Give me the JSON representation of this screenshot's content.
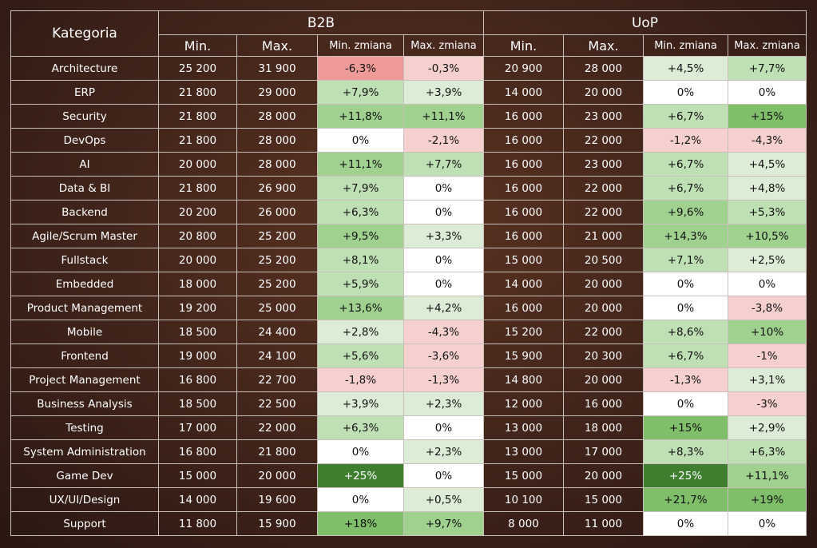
{
  "colors": {
    "neg_strong": "#ee9a98",
    "neg_light": "#f6cfcf",
    "neutral": "#ffffff",
    "pos_xlight": "#dcecd6",
    "pos_light": "#bfe0b4",
    "pos_mid": "#a0d18f",
    "pos_strong": "#7fbf6a",
    "pos_xstrong": "#3f7e2f"
  },
  "chart_data": {
    "type": "table",
    "title": "",
    "header": {
      "kategoria": "Kategoria",
      "groups": [
        "B2B",
        "UoP"
      ],
      "subcols": [
        "Min.",
        "Max.",
        "Min. zmiana",
        "Max. zmiana",
        "Min.",
        "Max.",
        "Min. zmiana",
        "Max. zmiana"
      ]
    },
    "rows": [
      {
        "kategoria": "Architecture",
        "b2b": [
          "25 200",
          "31 900",
          "-6,3%",
          "-0,3%"
        ],
        "uop": [
          "20 900",
          "28 000",
          "+4,5%",
          "+7,7%"
        ]
      },
      {
        "kategoria": "ERP",
        "b2b": [
          "21 800",
          "29 000",
          "+7,9%",
          "+3,9%"
        ],
        "uop": [
          "14 000",
          "20 000",
          "0%",
          "0%"
        ]
      },
      {
        "kategoria": "Security",
        "b2b": [
          "21 800",
          "28 000",
          "+11,8%",
          "+11,1%"
        ],
        "uop": [
          "16 000",
          "23 000",
          "+6,7%",
          "+15%"
        ]
      },
      {
        "kategoria": "DevOps",
        "b2b": [
          "21 800",
          "28 000",
          "0%",
          "-2,1%"
        ],
        "uop": [
          "16 000",
          "22 000",
          "-1,2%",
          "-4,3%"
        ]
      },
      {
        "kategoria": "AI",
        "b2b": [
          "20 000",
          "28 000",
          "+11,1%",
          "+7,7%"
        ],
        "uop": [
          "16 000",
          "23 000",
          "+6,7%",
          "+4,5%"
        ]
      },
      {
        "kategoria": "Data & BI",
        "b2b": [
          "21 800",
          "26 900",
          "+7,9%",
          "0%"
        ],
        "uop": [
          "16 000",
          "22 000",
          "+6,7%",
          "+4,8%"
        ]
      },
      {
        "kategoria": "Backend",
        "b2b": [
          "20 200",
          "26 000",
          "+6,3%",
          "0%"
        ],
        "uop": [
          "16 000",
          "22 000",
          "+9,6%",
          "+5,3%"
        ]
      },
      {
        "kategoria": "Agile/Scrum Master",
        "b2b": [
          "20 800",
          "25 200",
          "+9,5%",
          "+3,3%"
        ],
        "uop": [
          "16 000",
          "21 000",
          "+14,3%",
          "+10,5%"
        ]
      },
      {
        "kategoria": "Fullstack",
        "b2b": [
          "20 000",
          "25 200",
          "+8,1%",
          "0%"
        ],
        "uop": [
          "15 000",
          "20 500",
          "+7,1%",
          "+2,5%"
        ]
      },
      {
        "kategoria": "Embedded",
        "b2b": [
          "18 000",
          "25 200",
          "+5,9%",
          "0%"
        ],
        "uop": [
          "14 000",
          "20 000",
          "0%",
          "0%"
        ]
      },
      {
        "kategoria": "Product Management",
        "b2b": [
          "19 200",
          "25 000",
          "+13,6%",
          "+4,2%"
        ],
        "uop": [
          "16 000",
          "20 000",
          "0%",
          "-3,8%"
        ]
      },
      {
        "kategoria": "Mobile",
        "b2b": [
          "18 500",
          "24 400",
          "+2,8%",
          "-4,3%"
        ],
        "uop": [
          "15 200",
          "22 000",
          "+8,6%",
          "+10%"
        ]
      },
      {
        "kategoria": "Frontend",
        "b2b": [
          "19 000",
          "24 100",
          "+5,6%",
          "-3,6%"
        ],
        "uop": [
          "15 900",
          "20 300",
          "+6,7%",
          "-1%"
        ]
      },
      {
        "kategoria": "Project Management",
        "b2b": [
          "16 800",
          "22 700",
          "-1,8%",
          "-1,3%"
        ],
        "uop": [
          "14 800",
          "20 000",
          "-1,3%",
          "+3,1%"
        ]
      },
      {
        "kategoria": "Business Analysis",
        "b2b": [
          "18 500",
          "22 500",
          "+3,9%",
          "+2,3%"
        ],
        "uop": [
          "12 000",
          "16 000",
          "0%",
          "-3%"
        ]
      },
      {
        "kategoria": "Testing",
        "b2b": [
          "17 000",
          "22 000",
          "+6,3%",
          "0%"
        ],
        "uop": [
          "13 000",
          "18 000",
          "+15%",
          "+2,9%"
        ]
      },
      {
        "kategoria": "System Administration",
        "b2b": [
          "16 800",
          "21 800",
          "0%",
          "+2,3%"
        ],
        "uop": [
          "13 000",
          "17 000",
          "+8,3%",
          "+6,3%"
        ]
      },
      {
        "kategoria": "Game Dev",
        "b2b": [
          "15 000",
          "20 000",
          "+25%",
          "0%"
        ],
        "uop": [
          "15 000",
          "20 000",
          "+25%",
          "+11,1%"
        ]
      },
      {
        "kategoria": "UX/UI/Design",
        "b2b": [
          "14 000",
          "19 600",
          "0%",
          "+0,5%"
        ],
        "uop": [
          "10 100",
          "15 000",
          "+21,7%",
          "+19%"
        ]
      },
      {
        "kategoria": "Support",
        "b2b": [
          "11 800",
          "15 900",
          "+18%",
          "+9,7%"
        ],
        "uop": [
          "8 000",
          "11 000",
          "0%",
          "0%"
        ]
      }
    ]
  }
}
